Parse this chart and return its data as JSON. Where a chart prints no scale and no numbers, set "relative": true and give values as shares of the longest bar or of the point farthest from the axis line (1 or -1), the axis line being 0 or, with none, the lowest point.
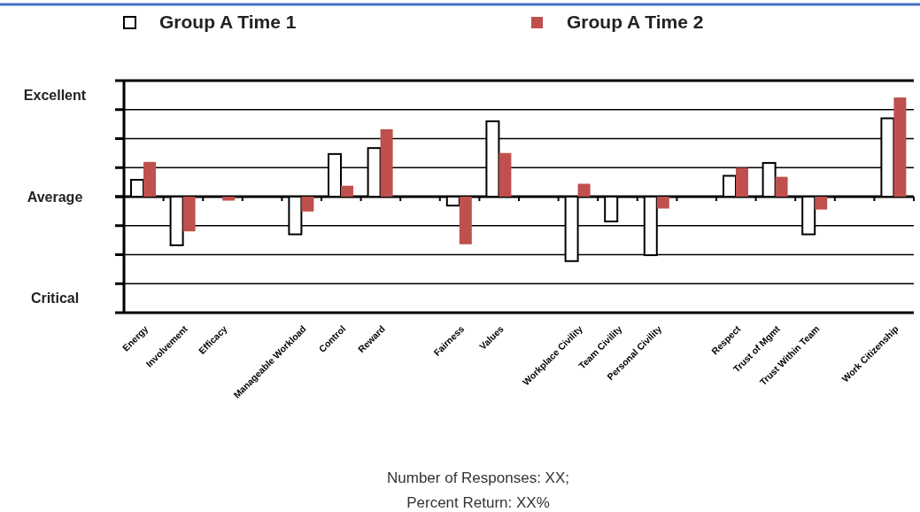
{
  "chart_data": {
    "type": "bar",
    "relative": true,
    "categories": [
      "Energy",
      "Involvement",
      "Efficacy",
      null,
      "Manageable Workload",
      "Control",
      "Reward",
      null,
      "Fairness",
      "Values",
      null,
      "Workplace Civility",
      "Team Civility",
      "Personal Civility",
      null,
      "Respect",
      "Trust of Mgmt",
      "Trust Within Team",
      null,
      "Work Citizenship"
    ],
    "series": [
      {
        "name": "Group A Time 1",
        "color": "#000000",
        "values": [
          0.17,
          -0.49,
          null,
          null,
          -0.38,
          0.43,
          0.49,
          null,
          -0.09,
          0.76,
          null,
          -0.65,
          -0.25,
          -0.59,
          null,
          0.21,
          0.34,
          -0.38,
          null,
          0.79
        ]
      },
      {
        "name": "Group A Time 2",
        "color": "#c0504d",
        "values": [
          0.35,
          -0.35,
          -0.04,
          null,
          -0.15,
          0.11,
          0.68,
          null,
          -0.48,
          0.44,
          null,
          0.13,
          null,
          -0.12,
          null,
          0.29,
          0.2,
          -0.13,
          null,
          1
        ]
      }
    ],
    "grid": "y",
    "annotations": [
      "Excellent",
      "Average",
      "Critical",
      "Number of Responses: XX;",
      "Percent Return: XX%"
    ],
    "legend": "top"
  }
}
